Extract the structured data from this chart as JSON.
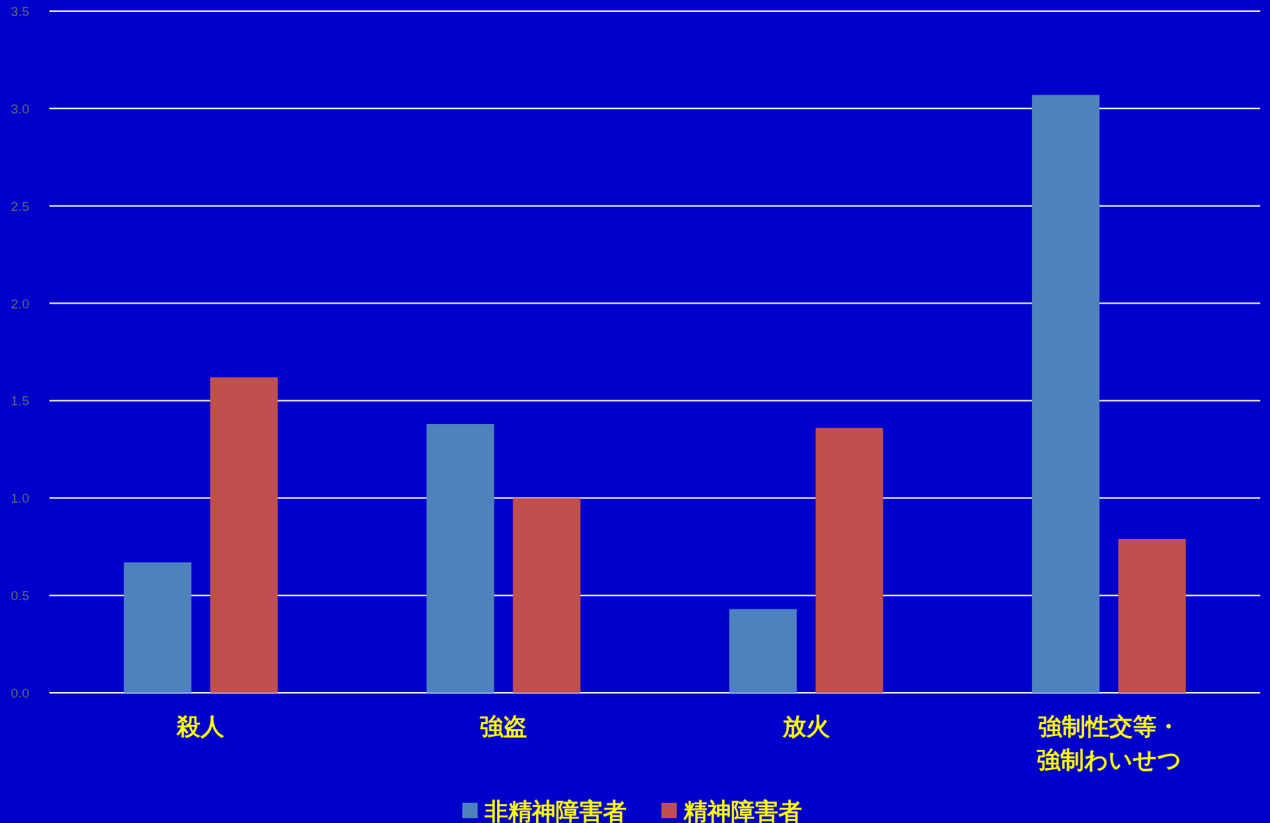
{
  "chart_data": {
    "type": "bar",
    "categories": [
      "殺人",
      "強盗",
      "放火",
      "強制性交等・強制わいせつ"
    ],
    "series": [
      {
        "name": "非精神障害者",
        "color": "#4f81bd",
        "values": [
          0.67,
          1.38,
          0.43,
          3.07
        ]
      },
      {
        "name": "精神障害者",
        "color": "#c0504d",
        "values": [
          1.62,
          1.0,
          1.36,
          0.79
        ]
      }
    ],
    "ylim": [
      0,
      3.5
    ],
    "yticks": [
      {
        "value": 0,
        "label": "0.0"
      },
      {
        "value": 0.5,
        "label": "0.5"
      },
      {
        "value": 1,
        "label": "1.0"
      },
      {
        "value": 1.5,
        "label": "1.5"
      },
      {
        "value": 2,
        "label": "2.0"
      },
      {
        "value": 2.5,
        "label": "2.5"
      },
      {
        "value": 3,
        "label": "3.0"
      },
      {
        "value": 3.5,
        "label": "3.5"
      }
    ],
    "grid": "y",
    "legend": "bottom"
  }
}
